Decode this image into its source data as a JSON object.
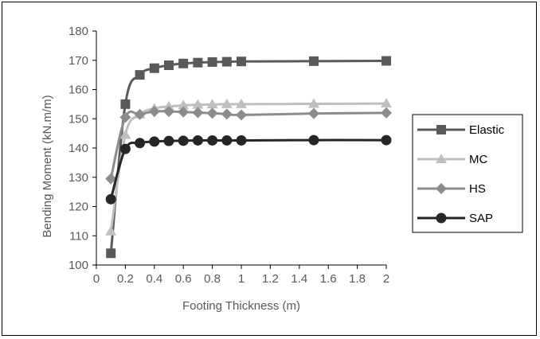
{
  "chart_data": {
    "type": "line",
    "xlabel": "Footing Thickness (m)",
    "ylabel": "Bending Moment (kN.m/m)",
    "xlim": [
      0,
      2
    ],
    "ylim": [
      100,
      180
    ],
    "xticks": [
      "0",
      "0.2",
      "0.4",
      "0.6",
      "0.8",
      "1",
      "1.2",
      "1.4",
      "1.6",
      "1.8",
      "2"
    ],
    "yticks": [
      "100",
      "110",
      "120",
      "130",
      "140",
      "150",
      "160",
      "170",
      "180"
    ],
    "grid": false,
    "legend_position": "right",
    "x": [
      0.1,
      0.2,
      0.3,
      0.4,
      0.5,
      0.6,
      0.7,
      0.8,
      0.9,
      1.0,
      1.5,
      2.0
    ],
    "series": [
      {
        "name": "Elastic",
        "marker": "square",
        "color": "#595959",
        "values": [
          104,
          155,
          165,
          167.3,
          168.3,
          168.9,
          169.2,
          169.4,
          169.5,
          169.6,
          169.7,
          169.8
        ]
      },
      {
        "name": "MC",
        "marker": "triangle",
        "color": "#bfbfbf",
        "values": [
          111.5,
          144.5,
          151.5,
          153.5,
          154.2,
          154.6,
          154.8,
          154.9,
          155,
          155,
          155.1,
          155.2
        ]
      },
      {
        "name": "HS",
        "marker": "diamond",
        "color": "#8c8c8c",
        "values": [
          129.5,
          150.5,
          151.5,
          152.5,
          152.5,
          152.3,
          152.1,
          151.9,
          151.6,
          151.3,
          151.8,
          152
        ]
      },
      {
        "name": "SAP",
        "marker": "circle",
        "color": "#262626",
        "values": [
          122.5,
          139.7,
          141.7,
          142.2,
          142.4,
          142.5,
          142.6,
          142.6,
          142.6,
          142.6,
          142.7,
          142.7
        ]
      }
    ]
  }
}
